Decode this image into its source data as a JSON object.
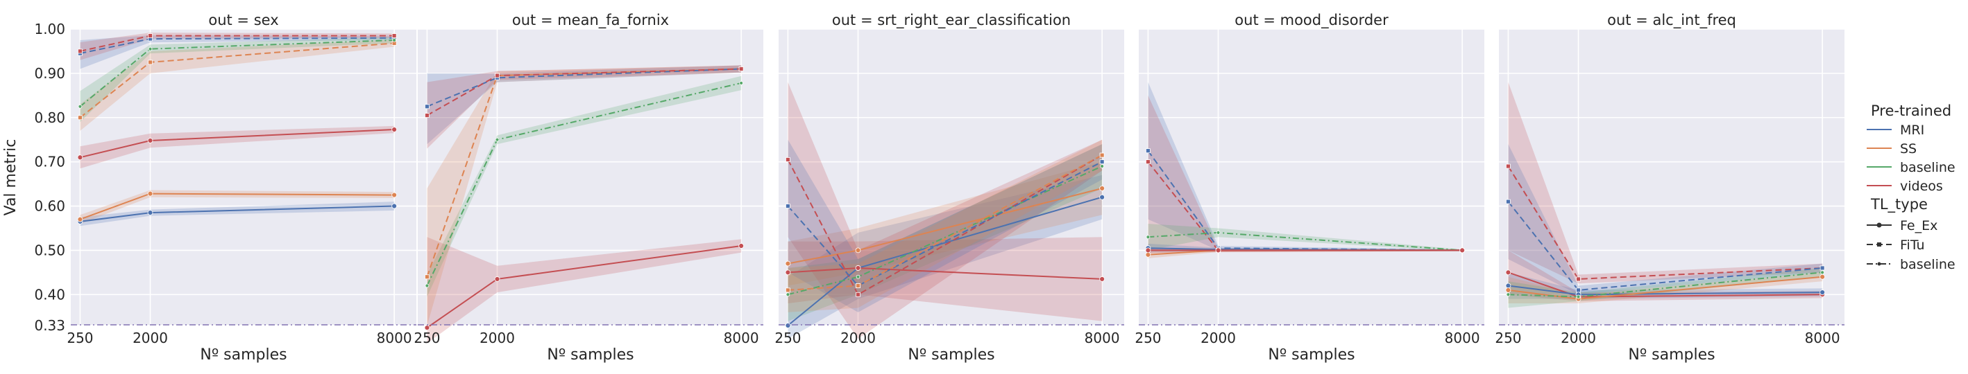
{
  "figure": {
    "ylabel": "Val metric",
    "xlabel": "Nº samples"
  },
  "legend": {
    "hue_title": "Pre-trained",
    "hue_entries": [
      {
        "label": "MRI",
        "color": "#4c72b0"
      },
      {
        "label": "SS",
        "color": "#dd8452"
      },
      {
        "label": "baseline",
        "color": "#55a868"
      },
      {
        "label": "videos",
        "color": "#c44e52"
      }
    ],
    "style_title": "TL_type",
    "style_entries": [
      {
        "label": "Fe_Ex",
        "dash": "solid",
        "marker": "circle"
      },
      {
        "label": "FiTu",
        "dash": "dashed",
        "marker": "square"
      },
      {
        "label": "baseline",
        "dash": "dashdot",
        "marker": "dot"
      }
    ]
  },
  "chart_data": {
    "type": "line",
    "x_ticks": [
      "250",
      "2000",
      "8000"
    ],
    "ylim": [
      0.33,
      1.0
    ],
    "y_ticks": [
      "0.33",
      "0.40",
      "0.50",
      "0.60",
      "0.70",
      "0.80",
      "0.90",
      "1.00"
    ],
    "grid": true,
    "legend_position": "right",
    "panels": [
      {
        "title": "out = sex",
        "series": [
          {
            "hue": "MRI",
            "style": "Fe_Ex",
            "x": [
              250,
              2000,
              8000
            ],
            "y": [
              0.565,
              0.585,
              0.6
            ],
            "lo": [
              0.555,
              0.578,
              0.59
            ],
            "hi": [
              0.575,
              0.592,
              0.61
            ]
          },
          {
            "hue": "SS",
            "style": "Fe_Ex",
            "x": [
              250,
              2000,
              8000
            ],
            "y": [
              0.57,
              0.628,
              0.625
            ],
            "lo": [
              0.56,
              0.62,
              0.618
            ],
            "hi": [
              0.58,
              0.636,
              0.632
            ]
          },
          {
            "hue": "videos",
            "style": "Fe_Ex",
            "x": [
              250,
              2000,
              8000
            ],
            "y": [
              0.71,
              0.748,
              0.773
            ],
            "lo": [
              0.685,
              0.732,
              0.765
            ],
            "hi": [
              0.735,
              0.764,
              0.781
            ]
          },
          {
            "hue": "MRI",
            "style": "FiTu",
            "x": [
              250,
              2000,
              8000
            ],
            "y": [
              0.945,
              0.978,
              0.98
            ],
            "lo": [
              0.91,
              0.97,
              0.975
            ],
            "hi": [
              0.975,
              0.986,
              0.985
            ]
          },
          {
            "hue": "SS",
            "style": "FiTu",
            "x": [
              250,
              2000,
              8000
            ],
            "y": [
              0.8,
              0.925,
              0.968
            ],
            "lo": [
              0.77,
              0.9,
              0.96
            ],
            "hi": [
              0.83,
              0.95,
              0.976
            ]
          },
          {
            "hue": "baseline",
            "style": "baseline",
            "x": [
              250,
              2000,
              8000
            ],
            "y": [
              0.825,
              0.955,
              0.975
            ],
            "lo": [
              0.79,
              0.945,
              0.968
            ],
            "hi": [
              0.86,
              0.965,
              0.982
            ]
          },
          {
            "hue": "videos",
            "style": "FiTu",
            "x": [
              250,
              2000,
              8000
            ],
            "y": [
              0.95,
              0.985,
              0.985
            ],
            "lo": [
              0.93,
              0.978,
              0.98
            ],
            "hi": [
              0.97,
              0.992,
              0.99
            ]
          }
        ]
      },
      {
        "title": "out = mean_fa_fornix",
        "series": [
          {
            "hue": "videos",
            "style": "Fe_Ex",
            "x": [
              250,
              2000,
              8000
            ],
            "y": [
              0.325,
              0.435,
              0.51
            ],
            "lo": [
              0.29,
              0.405,
              0.495
            ],
            "hi": [
              0.53,
              0.465,
              0.525
            ]
          },
          {
            "hue": "baseline",
            "style": "baseline",
            "x": [
              250,
              2000,
              8000
            ],
            "y": [
              0.42,
              0.75,
              0.878
            ],
            "lo": [
              0.395,
              0.74,
              0.862
            ],
            "hi": [
              0.445,
              0.76,
              0.894
            ]
          },
          {
            "hue": "SS",
            "style": "FiTu",
            "x": [
              250,
              2000,
              8000
            ],
            "y": [
              0.44,
              0.895,
              0.91
            ],
            "lo": [
              0.33,
              0.88,
              0.902
            ],
            "hi": [
              0.64,
              0.905,
              0.918
            ]
          },
          {
            "hue": "MRI",
            "style": "FiTu",
            "x": [
              250,
              2000,
              8000
            ],
            "y": [
              0.825,
              0.89,
              0.91
            ],
            "lo": [
              0.74,
              0.88,
              0.902
            ],
            "hi": [
              0.9,
              0.9,
              0.918
            ]
          },
          {
            "hue": "videos",
            "style": "FiTu",
            "x": [
              250,
              2000,
              8000
            ],
            "y": [
              0.805,
              0.895,
              0.91
            ],
            "lo": [
              0.73,
              0.885,
              0.902
            ],
            "hi": [
              0.88,
              0.905,
              0.918
            ]
          }
        ]
      },
      {
        "title": "out = srt_right_ear_classification",
        "series": [
          {
            "hue": "MRI",
            "style": "Fe_Ex",
            "x": [
              250,
              2000,
              8000
            ],
            "y": [
              0.33,
              0.46,
              0.62
            ],
            "lo": [
              0.3,
              0.39,
              0.57
            ],
            "hi": [
              0.44,
              0.54,
              0.67
            ]
          },
          {
            "hue": "videos",
            "style": "Fe_Ex",
            "x": [
              250,
              2000,
              8000
            ],
            "y": [
              0.45,
              0.46,
              0.435
            ],
            "lo": [
              0.38,
              0.4,
              0.34
            ],
            "hi": [
              0.52,
              0.52,
              0.53
            ]
          },
          {
            "hue": "SS",
            "style": "Fe_Ex",
            "x": [
              250,
              2000,
              8000
            ],
            "y": [
              0.47,
              0.5,
              0.64
            ],
            "lo": [
              0.42,
              0.45,
              0.58
            ],
            "hi": [
              0.52,
              0.55,
              0.7
            ]
          },
          {
            "hue": "baseline",
            "style": "baseline",
            "x": [
              250,
              2000,
              8000
            ],
            "y": [
              0.4,
              0.44,
              0.69
            ],
            "lo": [
              0.34,
              0.4,
              0.64
            ],
            "hi": [
              0.46,
              0.48,
              0.74
            ]
          },
          {
            "hue": "videos",
            "style": "FiTu",
            "x": [
              250,
              2000,
              8000
            ],
            "y": [
              0.705,
              0.4,
              0.715
            ],
            "lo": [
              0.53,
              0.3,
              0.68
            ],
            "hi": [
              0.88,
              0.5,
              0.75
            ]
          },
          {
            "hue": "MRI",
            "style": "FiTu",
            "x": [
              250,
              2000,
              8000
            ],
            "y": [
              0.6,
              0.42,
              0.7
            ],
            "lo": [
              0.45,
              0.36,
              0.66
            ],
            "hi": [
              0.75,
              0.48,
              0.74
            ]
          },
          {
            "hue": "SS",
            "style": "FiTu",
            "x": [
              250,
              2000,
              8000
            ],
            "y": [
              0.41,
              0.42,
              0.715
            ],
            "lo": [
              0.36,
              0.37,
              0.68
            ],
            "hi": [
              0.46,
              0.47,
              0.75
            ]
          }
        ]
      },
      {
        "title": "out = mood_disorder",
        "series": [
          {
            "hue": "MRI",
            "style": "FiTu",
            "x": [
              250,
              2000,
              8000
            ],
            "y": [
              0.725,
              0.505,
              0.5
            ],
            "lo": [
              0.57,
              0.5,
              0.498
            ],
            "hi": [
              0.88,
              0.51,
              0.502
            ]
          },
          {
            "hue": "videos",
            "style": "FiTu",
            "x": [
              250,
              2000,
              8000
            ],
            "y": [
              0.7,
              0.5,
              0.5
            ],
            "lo": [
              0.5,
              0.496,
              0.498
            ],
            "hi": [
              0.85,
              0.504,
              0.502
            ]
          },
          {
            "hue": "baseline",
            "style": "baseline",
            "x": [
              250,
              2000,
              8000
            ],
            "y": [
              0.53,
              0.54,
              0.5
            ],
            "lo": [
              0.5,
              0.53,
              0.498
            ],
            "hi": [
              0.56,
              0.55,
              0.502
            ]
          },
          {
            "hue": "MRI",
            "style": "Fe_Ex",
            "x": [
              250,
              2000,
              8000
            ],
            "y": [
              0.505,
              0.502,
              0.5
            ],
            "lo": [
              0.495,
              0.498,
              0.498
            ],
            "hi": [
              0.515,
              0.506,
              0.502
            ]
          },
          {
            "hue": "SS",
            "style": "Fe_Ex",
            "x": [
              250,
              2000,
              8000
            ],
            "y": [
              0.49,
              0.5,
              0.5
            ],
            "lo": [
              0.482,
              0.496,
              0.498
            ],
            "hi": [
              0.498,
              0.504,
              0.502
            ]
          },
          {
            "hue": "videos",
            "style": "Fe_Ex",
            "x": [
              250,
              2000,
              8000
            ],
            "y": [
              0.5,
              0.5,
              0.5
            ],
            "lo": [
              0.494,
              0.496,
              0.498
            ],
            "hi": [
              0.506,
              0.504,
              0.502
            ]
          }
        ]
      },
      {
        "title": "out = alc_int_freq",
        "series": [
          {
            "hue": "videos",
            "style": "FiTu",
            "x": [
              250,
              2000,
              8000
            ],
            "y": [
              0.69,
              0.435,
              0.46
            ],
            "lo": [
              0.5,
              0.425,
              0.45
            ],
            "hi": [
              0.88,
              0.445,
              0.47
            ]
          },
          {
            "hue": "MRI",
            "style": "FiTu",
            "x": [
              250,
              2000,
              8000
            ],
            "y": [
              0.61,
              0.41,
              0.46
            ],
            "lo": [
              0.48,
              0.4,
              0.45
            ],
            "hi": [
              0.74,
              0.42,
              0.47
            ]
          },
          {
            "hue": "videos",
            "style": "Fe_Ex",
            "x": [
              250,
              2000,
              8000
            ],
            "y": [
              0.45,
              0.395,
              0.4
            ],
            "lo": [
              0.4,
              0.385,
              0.392
            ],
            "hi": [
              0.5,
              0.405,
              0.408
            ]
          },
          {
            "hue": "MRI",
            "style": "Fe_Ex",
            "x": [
              250,
              2000,
              8000
            ],
            "y": [
              0.42,
              0.4,
              0.405
            ],
            "lo": [
              0.39,
              0.39,
              0.396
            ],
            "hi": [
              0.45,
              0.41,
              0.414
            ]
          },
          {
            "hue": "SS",
            "style": "Fe_Ex",
            "x": [
              250,
              2000,
              8000
            ],
            "y": [
              0.41,
              0.39,
              0.44
            ],
            "lo": [
              0.38,
              0.38,
              0.43
            ],
            "hi": [
              0.44,
              0.4,
              0.45
            ]
          },
          {
            "hue": "baseline",
            "style": "baseline",
            "x": [
              250,
              2000,
              8000
            ],
            "y": [
              0.4,
              0.395,
              0.45
            ],
            "lo": [
              0.37,
              0.385,
              0.44
            ],
            "hi": [
              0.43,
              0.405,
              0.46
            ]
          }
        ]
      }
    ]
  }
}
